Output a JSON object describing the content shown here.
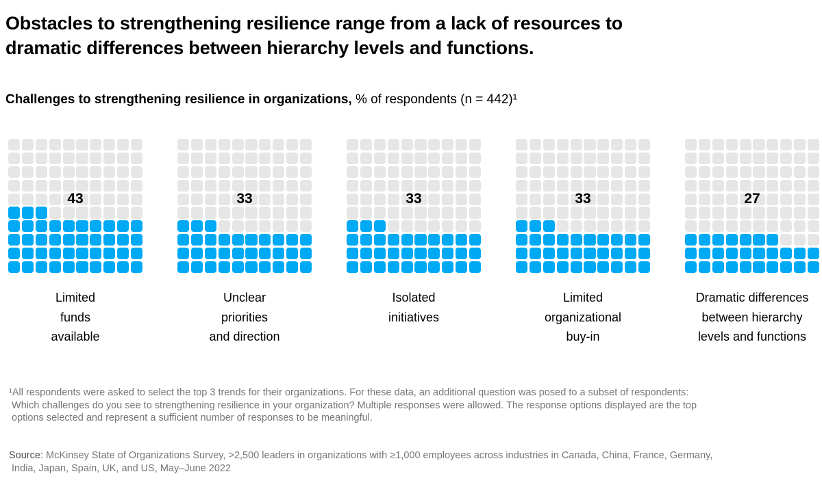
{
  "header": {
    "title": "Obstacles to strengthening resilience range from a lack of resources to\ndramatic differences between hierarchy levels and functions.",
    "subtitle_bold": "Challenges to strengthening resilience in organizations,",
    "subtitle_regular": " % of respondents (n = 442)¹"
  },
  "chart_data": {
    "type": "waffle",
    "title": "Challenges to strengthening resilience in organizations",
    "unit": "% of respondents",
    "n_label": "(n = 442)",
    "grid": {
      "rows": 10,
      "cols": 10,
      "cell_value_percent": 1
    },
    "categories": [
      "Limited funds available",
      "Unclear priorities and direction",
      "Isolated initiatives",
      "Limited organizational buy-in",
      "Dramatic differences between hierarchy levels and functions"
    ],
    "values": [
      43,
      33,
      33,
      33,
      27
    ],
    "series": [
      {
        "label": "Limited\nfunds\navailable",
        "value": 43
      },
      {
        "label": "Unclear\npriorities\nand direction",
        "value": 33
      },
      {
        "label": "Isolated\ninitiatives",
        "value": 33
      },
      {
        "label": "Limited\norganizational\nbuy-in",
        "value": 33
      },
      {
        "label": "Dramatic differences\nbetween hierarchy\nlevels and functions",
        "value": 27
      }
    ],
    "colors": {
      "filled": "#00A9F4",
      "empty": "#E6E6E6"
    },
    "legend_position": "none",
    "fill_direction": "bottom-up, left-to-right"
  },
  "footnote": {
    "note": "¹All respondents were asked to select the top 3 trends for their organizations. For these data, an additional question was posed to a subset of respondents:\n Which challenges do you see to strengthening resilience in your organization? Multiple responses were allowed. The response options displayed are the top\n options selected and represent a sufficient number of responses to be meaningful.",
    "source_label": "Source:",
    "source_text": " McKinsey State of Organizations Survey, >2,500 leaders in organizations with ≥1,000 employees across industries in Canada, China, France, Germany,\n India, Japan, Spain, UK, and US, May–June 2022"
  }
}
